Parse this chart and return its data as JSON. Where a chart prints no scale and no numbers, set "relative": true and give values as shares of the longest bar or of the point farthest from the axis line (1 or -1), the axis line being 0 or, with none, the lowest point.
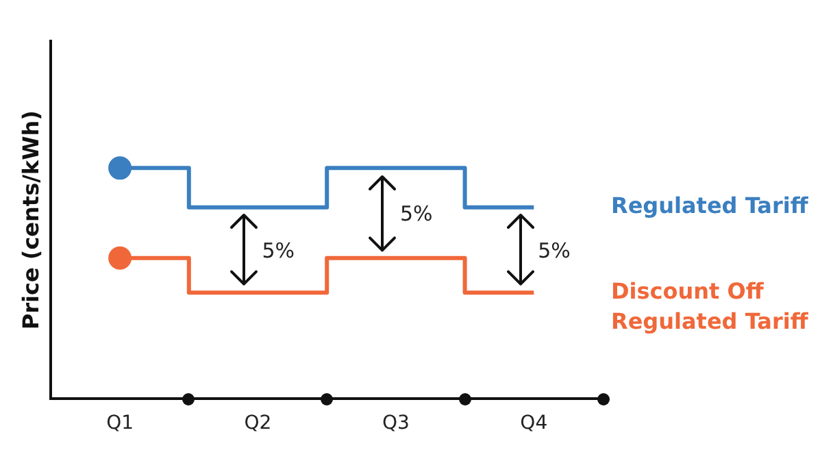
{
  "chart_data": {
    "type": "step",
    "relative": true,
    "ylabel": "Price (cents/kWh)",
    "categories": [
      "Q1",
      "Q2",
      "Q3",
      "Q4"
    ],
    "series": [
      {
        "name": "Regulated Tariff",
        "color": "#3b7fc0",
        "values": [
          1,
          0.83,
          1,
          0.83
        ]
      },
      {
        "name": "Discount Off Regulated Tariff",
        "color": "#f0683a",
        "values": [
          0.61,
          0.46,
          0.61,
          0.46
        ]
      }
    ],
    "annotations": [
      "5%",
      "5%",
      "5%"
    ],
    "legend": false,
    "grid": false
  }
}
